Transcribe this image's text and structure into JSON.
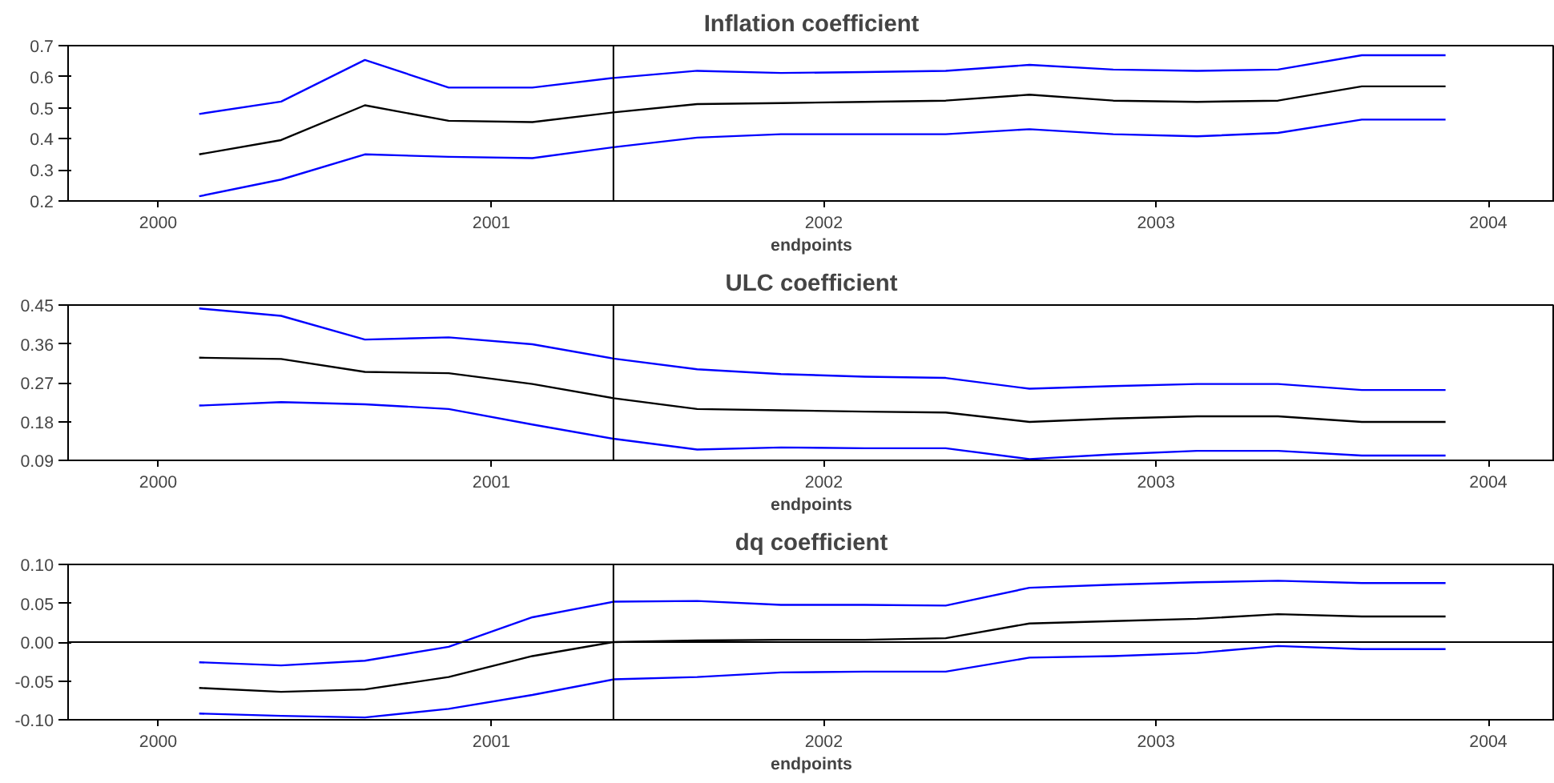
{
  "chart_data": [
    {
      "type": "line",
      "title": "Inflation coefficient",
      "xlabel": "endpoints",
      "x": [
        "2000-02-15",
        "2000-05-15",
        "2000-08-15",
        "2000-11-15",
        "2001-02-15",
        "2001-05-15",
        "2001-08-15",
        "2001-11-15",
        "2002-02-15",
        "2002-05-15",
        "2002-08-15",
        "2002-11-15",
        "2003-02-15",
        "2003-05-15",
        "2003-08-15",
        "2003-11-15"
      ],
      "series": [
        {
          "color": "#0000ff",
          "values": [
            0.48,
            0.52,
            0.654,
            0.565,
            0.565,
            0.596,
            0.619,
            0.612,
            0.615,
            0.619,
            0.638,
            0.623,
            0.619,
            0.623,
            0.669,
            0.669
          ]
        },
        {
          "color": "#000000",
          "values": [
            0.35,
            0.396,
            0.508,
            0.458,
            0.454,
            0.485,
            0.512,
            0.515,
            0.519,
            0.523,
            0.542,
            0.523,
            0.519,
            0.523,
            0.569,
            0.569
          ]
        },
        {
          "color": "#0000ff",
          "values": [
            0.215,
            0.269,
            0.35,
            0.342,
            0.338,
            0.373,
            0.404,
            0.415,
            0.415,
            0.415,
            0.431,
            0.415,
            0.408,
            0.419,
            0.462,
            0.462
          ]
        }
      ],
      "xlim": [
        "1999-09-24",
        "2004-03-14"
      ],
      "xticks": [
        "2000",
        "2001",
        "2002",
        "2003",
        "2004"
      ],
      "ylim": [
        0.2,
        0.7
      ],
      "yticks": [
        0.2,
        0.3,
        0.4,
        0.5,
        0.6,
        0.7
      ],
      "ref_lines": [
        {
          "axis": "x",
          "value": "2001-05-15",
          "color": "#000000"
        }
      ],
      "grid": false
    },
    {
      "type": "line",
      "title": "ULC coefficient",
      "xlabel": "endpoints",
      "x": [
        "2000-02-15",
        "2000-05-15",
        "2000-08-15",
        "2000-11-15",
        "2001-02-15",
        "2001-05-15",
        "2001-08-15",
        "2001-11-15",
        "2002-02-15",
        "2002-05-15",
        "2002-08-15",
        "2002-11-15",
        "2003-02-15",
        "2003-05-15",
        "2003-08-15",
        "2003-11-15"
      ],
      "series": [
        {
          "color": "#0000ff",
          "values": [
            0.442,
            0.425,
            0.37,
            0.375,
            0.359,
            0.326,
            0.301,
            0.29,
            0.284,
            0.281,
            0.256,
            0.262,
            0.267,
            0.267,
            0.253,
            0.253
          ]
        },
        {
          "color": "#000000",
          "values": [
            0.328,
            0.325,
            0.295,
            0.292,
            0.267,
            0.234,
            0.209,
            0.206,
            0.203,
            0.201,
            0.179,
            0.187,
            0.192,
            0.192,
            0.179,
            0.179
          ]
        },
        {
          "color": "#0000ff",
          "values": [
            0.217,
            0.225,
            0.22,
            0.209,
            0.173,
            0.14,
            0.115,
            0.12,
            0.118,
            0.118,
            0.093,
            0.104,
            0.112,
            0.112,
            0.101,
            0.101
          ]
        }
      ],
      "xlim": [
        "1999-09-24",
        "2004-03-14"
      ],
      "xticks": [
        "2000",
        "2001",
        "2002",
        "2003",
        "2004"
      ],
      "ylim": [
        0.09,
        0.45
      ],
      "yticks": [
        {
          "value": 0.09,
          "label": "0.09"
        },
        {
          "value": 0.18,
          "label": "0.18"
        },
        {
          "value": 0.27,
          "label": "0.27"
        },
        {
          "value": 0.36,
          "label": "0.36"
        },
        {
          "value": 0.45,
          "label": "0.45"
        }
      ],
      "ref_lines": [
        {
          "axis": "x",
          "value": "2001-05-15",
          "color": "#000000"
        }
      ],
      "grid": false
    },
    {
      "type": "line",
      "title": "dq coefficient",
      "xlabel": "endpoints",
      "x": [
        "2000-02-15",
        "2000-05-15",
        "2000-08-15",
        "2000-11-15",
        "2001-02-15",
        "2001-05-15",
        "2001-08-15",
        "2001-11-15",
        "2002-02-15",
        "2002-05-15",
        "2002-08-15",
        "2002-11-15",
        "2003-02-15",
        "2003-05-15",
        "2003-08-15",
        "2003-11-15"
      ],
      "series": [
        {
          "color": "#0000ff",
          "values": [
            -0.026,
            -0.03,
            -0.024,
            -0.006,
            0.032,
            0.052,
            0.053,
            0.048,
            0.048,
            0.047,
            0.07,
            0.074,
            0.077,
            0.079,
            0.076,
            0.076
          ]
        },
        {
          "color": "#000000",
          "values": [
            -0.059,
            -0.064,
            -0.061,
            -0.045,
            -0.018,
            0.0,
            0.002,
            0.003,
            0.003,
            0.005,
            0.024,
            0.027,
            0.03,
            0.036,
            0.033,
            0.033
          ]
        },
        {
          "color": "#0000ff",
          "values": [
            -0.092,
            -0.095,
            -0.097,
            -0.086,
            -0.068,
            -0.048,
            -0.045,
            -0.039,
            -0.038,
            -0.038,
            -0.02,
            -0.018,
            -0.014,
            -0.005,
            -0.009,
            -0.009
          ]
        }
      ],
      "xlim": [
        "1999-09-24",
        "2004-03-14"
      ],
      "xticks": [
        "2000",
        "2001",
        "2002",
        "2003",
        "2004"
      ],
      "ylim": [
        -0.1,
        0.1
      ],
      "yticks": [
        {
          "value": -0.1,
          "label": "-0.10"
        },
        {
          "value": -0.05,
          "label": "-0.05"
        },
        {
          "value": 0,
          "label": "0.00"
        },
        {
          "value": 0.05,
          "label": "0.05"
        },
        {
          "value": 0.1,
          "label": "0.10"
        }
      ],
      "ref_lines": [
        {
          "axis": "x",
          "value": "2001-05-15",
          "color": "#000000"
        },
        {
          "axis": "y",
          "value": 0,
          "color": "#000000"
        }
      ],
      "grid": false
    }
  ]
}
